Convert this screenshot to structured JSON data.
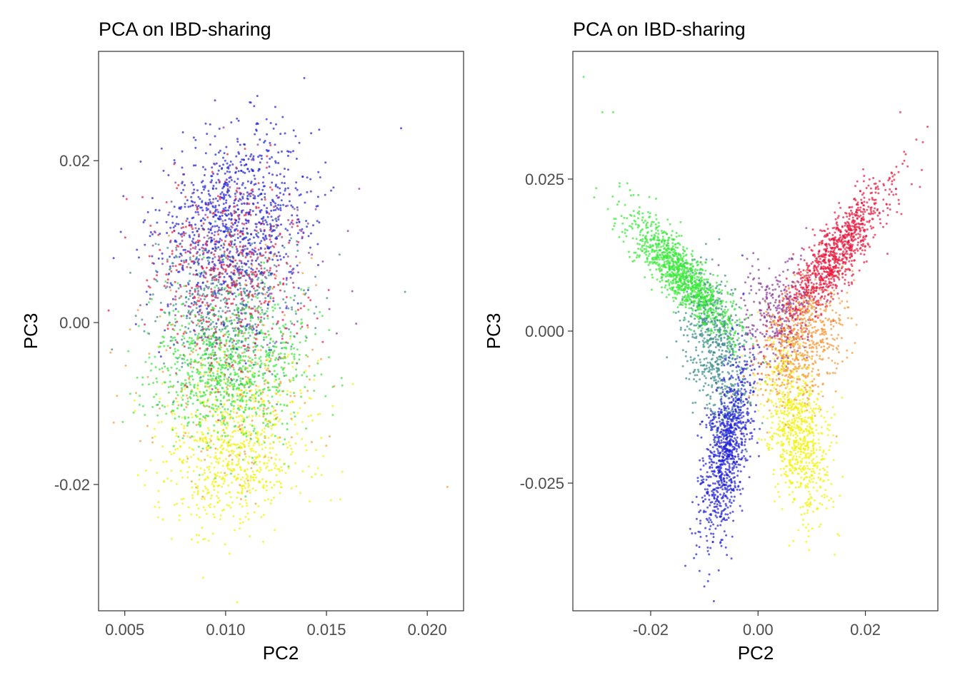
{
  "colors": {
    "blue": "#2020d8",
    "red": "#e8173c",
    "green": "#38e838",
    "yellow": "#f2f20c",
    "orange": "#f59a3a",
    "teal": "#3a8a8a",
    "purple": "#8a3a9a"
  },
  "chart_data": [
    {
      "type": "scatter",
      "title": "PCA on IBD-sharing",
      "xlabel": "PC2",
      "ylabel": "PC3",
      "xlim": [
        0.0037,
        0.0218
      ],
      "ylim": [
        -0.0356,
        0.0335
      ],
      "xticks": [
        {
          "value": 0.005,
          "label": "0.005"
        },
        {
          "value": 0.01,
          "label": "0.010"
        },
        {
          "value": 0.015,
          "label": "0.015"
        },
        {
          "value": 0.02,
          "label": "0.020"
        }
      ],
      "yticks": [
        {
          "value": 0.02,
          "label": "0.02"
        },
        {
          "value": 0.0,
          "label": "0.00"
        },
        {
          "value": -0.02,
          "label": "-0.02"
        }
      ],
      "grid": false,
      "legend": "none",
      "clusters": [
        {
          "color": "blue",
          "n": 900,
          "cx": 0.0105,
          "cy": 0.013,
          "sx": 0.0019,
          "sy": 0.0055,
          "rho": 0.15
        },
        {
          "color": "red",
          "n": 450,
          "cx": 0.0102,
          "cy": 0.006,
          "sx": 0.0019,
          "sy": 0.006,
          "rho": 0.05
        },
        {
          "color": "teal",
          "n": 500,
          "cx": 0.01,
          "cy": 0.002,
          "sx": 0.0018,
          "sy": 0.0045,
          "rho": 0.0
        },
        {
          "color": "purple",
          "n": 250,
          "cx": 0.0105,
          "cy": 0.008,
          "sx": 0.002,
          "sy": 0.005,
          "rho": 0.1
        },
        {
          "color": "green",
          "n": 900,
          "cx": 0.0102,
          "cy": -0.006,
          "sx": 0.0019,
          "sy": 0.0045,
          "rho": 0.0
        },
        {
          "color": "yellow",
          "n": 750,
          "cx": 0.0105,
          "cy": -0.016,
          "sx": 0.0019,
          "sy": 0.0048,
          "rho": 0.1
        },
        {
          "color": "orange",
          "n": 220,
          "cx": 0.0105,
          "cy": -0.008,
          "sx": 0.0022,
          "sy": 0.007,
          "rho": 0.0
        }
      ],
      "outliers": [
        {
          "x": 0.021,
          "y": -0.0203,
          "color": "orange"
        },
        {
          "x": 0.0187,
          "y": 0.024,
          "color": "blue"
        },
        {
          "x": 0.0189,
          "y": 0.0038,
          "color": "teal"
        },
        {
          "x": 0.0139,
          "y": 0.0302,
          "color": "blue"
        },
        {
          "x": 0.0048,
          "y": 0.0112,
          "color": "blue"
        },
        {
          "x": 0.0042,
          "y": 0.0015,
          "color": "red"
        },
        {
          "x": 0.0043,
          "y": -0.0037,
          "color": "orange"
        }
      ]
    },
    {
      "type": "scatter",
      "title": "PCA on IBD-sharing",
      "xlabel": "PC2",
      "ylabel": "PC3",
      "xlim": [
        -0.0345,
        0.0335
      ],
      "ylim": [
        -0.046,
        0.046
      ],
      "xticks": [
        {
          "value": -0.02,
          "label": "-0.02"
        },
        {
          "value": 0.0,
          "label": "0.00"
        },
        {
          "value": 0.02,
          "label": "0.02"
        }
      ],
      "yticks": [
        {
          "value": 0.025,
          "label": "0.025"
        },
        {
          "value": 0.0,
          "label": "0.000"
        },
        {
          "value": -0.025,
          "label": "-0.025"
        }
      ],
      "grid": false,
      "legend": "none",
      "clusters": [
        {
          "color": "green",
          "n": 1150,
          "cx": -0.014,
          "cy": 0.009,
          "sx": 0.0048,
          "sy": 0.005,
          "rho": -0.85
        },
        {
          "color": "teal",
          "n": 550,
          "cx": -0.008,
          "cy": -0.003,
          "sx": 0.003,
          "sy": 0.006,
          "rho": -0.4
        },
        {
          "color": "blue",
          "n": 950,
          "cx": -0.006,
          "cy": -0.019,
          "sx": 0.0024,
          "sy": 0.0075,
          "rho": 0.55
        },
        {
          "color": "red",
          "n": 1000,
          "cx": 0.014,
          "cy": 0.012,
          "sx": 0.005,
          "sy": 0.006,
          "rho": 0.85
        },
        {
          "color": "orange",
          "n": 650,
          "cx": 0.008,
          "cy": -0.002,
          "sx": 0.004,
          "sy": 0.005,
          "rho": 0.3
        },
        {
          "color": "yellow",
          "n": 800,
          "cx": 0.0075,
          "cy": -0.017,
          "sx": 0.0028,
          "sy": 0.0065,
          "rho": -0.35
        },
        {
          "color": "purple",
          "n": 300,
          "cx": 0.0035,
          "cy": 0.003,
          "sx": 0.0035,
          "sy": 0.0045,
          "rho": 0.2
        }
      ],
      "outliers": [
        {
          "x": -0.0325,
          "y": 0.0418,
          "color": "green"
        },
        {
          "x": -0.029,
          "y": 0.036,
          "color": "green"
        },
        {
          "x": -0.027,
          "y": 0.036,
          "color": "green"
        },
        {
          "x": 0.0265,
          "y": 0.036,
          "color": "red"
        },
        {
          "x": 0.0305,
          "y": 0.0265,
          "color": "red"
        },
        {
          "x": 0.0295,
          "y": 0.0315,
          "color": "red"
        },
        {
          "x": -0.01,
          "y": -0.042,
          "color": "blue"
        },
        {
          "x": 0.0095,
          "y": -0.036,
          "color": "yellow"
        }
      ]
    }
  ]
}
